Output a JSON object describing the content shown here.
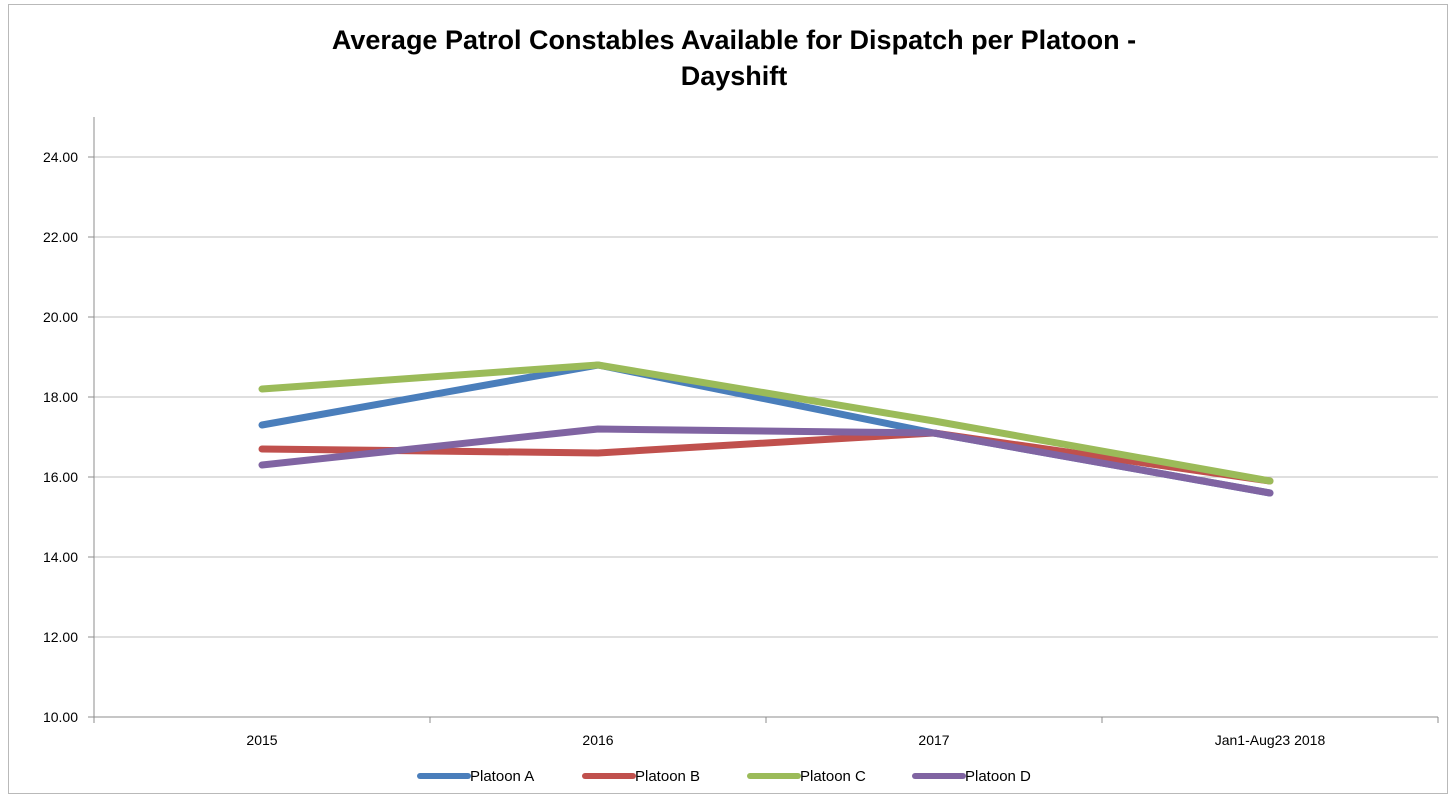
{
  "chart_data": {
    "type": "line",
    "title_line1": "Average Patrol Constables Available for Dispatch per Platoon -",
    "title_line2": "Dayshift",
    "categories": [
      "2015",
      "2016",
      "2017",
      "Jan1-Aug23 2018"
    ],
    "y_ticks": [
      "10.00",
      "12.00",
      "14.00",
      "16.00",
      "18.00",
      "20.00",
      "22.00",
      "24.00"
    ],
    "ylim": [
      10,
      25
    ],
    "grid": true,
    "legend_position": "bottom",
    "series": [
      {
        "name": "Platoon A",
        "color": "#4a7ebb",
        "values": [
          17.3,
          18.8,
          17.1,
          15.6
        ]
      },
      {
        "name": "Platoon B",
        "color": "#c0504d",
        "values": [
          16.7,
          16.6,
          17.1,
          15.9
        ]
      },
      {
        "name": "Platoon C",
        "color": "#9bbb59",
        "values": [
          18.2,
          18.8,
          17.4,
          15.9
        ]
      },
      {
        "name": "Platoon D",
        "color": "#8064a2",
        "values": [
          16.3,
          17.2,
          17.1,
          15.6
        ]
      }
    ]
  }
}
